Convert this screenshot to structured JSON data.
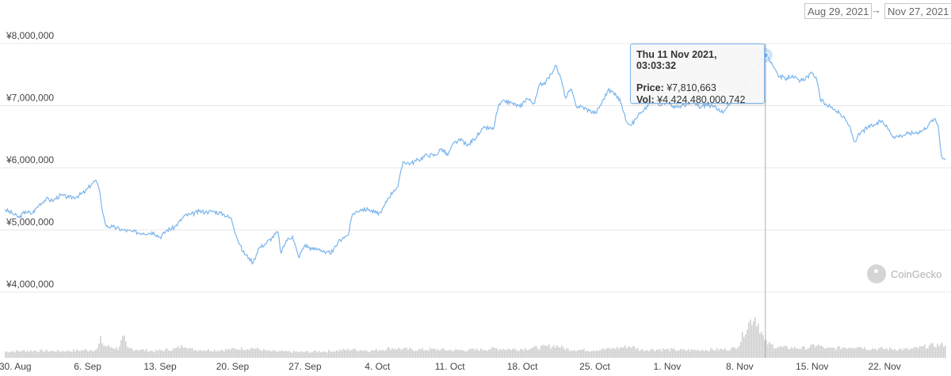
{
  "range": {
    "start": "Aug 29, 2021",
    "arrow": "→",
    "end": "Nov 27, 2021"
  },
  "tooltip": {
    "title": "Thu 11 Nov 2021, 03:03:32",
    "price_label": "Price:",
    "price_value": "¥7,810,663",
    "vol_label": "Vol:",
    "vol_value": "¥4,424,480,000,742",
    "date_day": 74.1,
    "price": 7810663
  },
  "watermark": {
    "text": "CoinGecko"
  },
  "colors": {
    "line": "#7cb5ec",
    "volume": "#d0d0d0",
    "grid": "#e8e8e8",
    "crosshair": "#b0b0b0"
  },
  "chart_data": {
    "type": "line",
    "title": "",
    "xlabel": "",
    "ylabel": "",
    "x_tick_labels": [
      "30. Aug",
      "6. Sep",
      "13. Sep",
      "20. Sep",
      "27. Sep",
      "4. Oct",
      "11. Oct",
      "18. Oct",
      "25. Oct",
      "1. Nov",
      "8. Nov",
      "15. Nov",
      "22. Nov"
    ],
    "x_tick_days": [
      1,
      8,
      15,
      22,
      29,
      36,
      43,
      50,
      57,
      64,
      71,
      78,
      85
    ],
    "y_ticks": [
      4000000,
      5000000,
      6000000,
      7000000,
      8000000
    ],
    "y_tick_labels": [
      "¥4,000,000",
      "¥5,000,000",
      "¥6,000,000",
      "¥7,000,000",
      "¥8,000,000"
    ],
    "ylim": [
      3900000,
      8150000
    ],
    "xlim": [
      0.6,
      91.5
    ],
    "grid": true,
    "series": [
      {
        "values": [
          [
            0.6,
            5330000
          ],
          [
            1.3,
            5270000
          ],
          [
            2.0,
            5200000
          ],
          [
            2.6,
            5300000
          ],
          [
            3.2,
            5260000
          ],
          [
            4.0,
            5420000
          ],
          [
            4.6,
            5500000
          ],
          [
            5.2,
            5470000
          ],
          [
            6.0,
            5560000
          ],
          [
            6.8,
            5520000
          ],
          [
            7.6,
            5540000
          ],
          [
            8.4,
            5620000
          ],
          [
            9.0,
            5740000
          ],
          [
            9.4,
            5800000
          ],
          [
            9.8,
            5600000
          ],
          [
            10.1,
            5250000
          ],
          [
            10.4,
            5060000
          ],
          [
            11.0,
            5050000
          ],
          [
            12.0,
            5000000
          ],
          [
            13.0,
            4970000
          ],
          [
            14.0,
            4950000
          ],
          [
            15.0,
            4960000
          ],
          [
            15.6,
            4880000
          ],
          [
            16.3,
            5000000
          ],
          [
            17.0,
            5040000
          ],
          [
            18.0,
            5230000
          ],
          [
            18.6,
            5250000
          ],
          [
            19.4,
            5300000
          ],
          [
            20.0,
            5290000
          ],
          [
            20.8,
            5300000
          ],
          [
            21.8,
            5250000
          ],
          [
            22.5,
            5180000
          ],
          [
            23.0,
            4900000
          ],
          [
            23.6,
            4650000
          ],
          [
            24.2,
            4550000
          ],
          [
            24.6,
            4470000
          ],
          [
            25.1,
            4700000
          ],
          [
            25.8,
            4780000
          ],
          [
            26.4,
            4870000
          ],
          [
            27.0,
            4970000
          ],
          [
            27.3,
            4620000
          ],
          [
            27.8,
            4830000
          ],
          [
            28.4,
            4900000
          ],
          [
            29.0,
            4560000
          ],
          [
            29.6,
            4760000
          ],
          [
            30.3,
            4690000
          ],
          [
            31.0,
            4700000
          ],
          [
            31.6,
            4620000
          ],
          [
            32.3,
            4650000
          ],
          [
            32.8,
            4800000
          ],
          [
            33.3,
            4880000
          ],
          [
            33.8,
            4920000
          ],
          [
            34.2,
            5260000
          ],
          [
            35.0,
            5330000
          ],
          [
            35.8,
            5330000
          ],
          [
            36.5,
            5270000
          ],
          [
            37.0,
            5280000
          ],
          [
            37.6,
            5500000
          ],
          [
            38.2,
            5640000
          ],
          [
            38.6,
            5700000
          ],
          [
            39.1,
            6100000
          ],
          [
            39.8,
            6070000
          ],
          [
            40.6,
            6130000
          ],
          [
            41.4,
            6210000
          ],
          [
            42.2,
            6200000
          ],
          [
            42.8,
            6310000
          ],
          [
            43.4,
            6200000
          ],
          [
            44.0,
            6400000
          ],
          [
            44.8,
            6450000
          ],
          [
            45.3,
            6350000
          ],
          [
            45.9,
            6460000
          ],
          [
            46.5,
            6560000
          ],
          [
            47.0,
            6650000
          ],
          [
            47.8,
            6620000
          ],
          [
            48.3,
            6990000
          ],
          [
            48.9,
            7080000
          ],
          [
            49.6,
            7040000
          ],
          [
            50.4,
            6980000
          ],
          [
            51.0,
            7120000
          ],
          [
            51.8,
            7040000
          ],
          [
            52.3,
            7350000
          ],
          [
            52.9,
            7380000
          ],
          [
            53.4,
            7510000
          ],
          [
            53.8,
            7650000
          ],
          [
            54.3,
            7460000
          ],
          [
            54.8,
            7120000
          ],
          [
            55.3,
            7270000
          ],
          [
            55.8,
            7000000
          ],
          [
            56.4,
            6980000
          ],
          [
            57.1,
            6920000
          ],
          [
            57.7,
            6880000
          ],
          [
            58.3,
            7050000
          ],
          [
            58.9,
            7250000
          ],
          [
            59.6,
            7200000
          ],
          [
            60.2,
            7030000
          ],
          [
            60.6,
            6770000
          ],
          [
            61.2,
            6690000
          ],
          [
            61.8,
            6850000
          ],
          [
            62.3,
            6900000
          ],
          [
            62.9,
            7050000
          ],
          [
            63.5,
            7060000
          ],
          [
            64.1,
            7020000
          ],
          [
            64.7,
            7100000
          ],
          [
            65.3,
            6960000
          ],
          [
            66.0,
            7000000
          ],
          [
            66.6,
            7030000
          ],
          [
            67.2,
            7050000
          ],
          [
            67.8,
            6970000
          ],
          [
            68.4,
            7020000
          ],
          [
            69.0,
            6980000
          ],
          [
            69.6,
            6950000
          ],
          [
            70.0,
            6880000
          ],
          [
            70.6,
            7010000
          ],
          [
            71.2,
            7160000
          ],
          [
            71.8,
            7260000
          ],
          [
            72.5,
            7480000
          ],
          [
            73.2,
            7640000
          ],
          [
            74.1,
            7810663
          ],
          [
            74.7,
            7700000
          ],
          [
            75.3,
            7500000
          ],
          [
            76.0,
            7430000
          ],
          [
            76.7,
            7490000
          ],
          [
            77.4,
            7380000
          ],
          [
            78.0,
            7450000
          ],
          [
            78.6,
            7520000
          ],
          [
            79.0,
            7460000
          ],
          [
            79.4,
            7100000
          ],
          [
            80.0,
            7020000
          ],
          [
            80.8,
            6940000
          ],
          [
            81.6,
            6820000
          ],
          [
            82.2,
            6680000
          ],
          [
            82.7,
            6420000
          ],
          [
            83.3,
            6560000
          ],
          [
            84.0,
            6650000
          ],
          [
            84.8,
            6700000
          ],
          [
            85.4,
            6760000
          ],
          [
            85.9,
            6640000
          ],
          [
            86.5,
            6500000
          ],
          [
            87.2,
            6520000
          ],
          [
            87.9,
            6550000
          ],
          [
            88.6,
            6570000
          ],
          [
            89.3,
            6600000
          ],
          [
            89.9,
            6700000
          ],
          [
            90.4,
            6790000
          ],
          [
            90.8,
            6680000
          ],
          [
            91.1,
            6200000
          ],
          [
            91.5,
            6130000
          ]
        ]
      }
    ],
    "volume": {
      "values": [
        [
          0.6,
          0.28
        ],
        [
          3,
          0.32
        ],
        [
          6,
          0.3
        ],
        [
          9,
          0.36
        ],
        [
          9.5,
          0.4
        ],
        [
          9.8,
          0.85
        ],
        [
          10.1,
          0.55
        ],
        [
          11.5,
          0.42
        ],
        [
          12,
          0.95
        ],
        [
          12.4,
          0.42
        ],
        [
          15,
          0.3
        ],
        [
          17,
          0.4
        ],
        [
          18,
          0.58
        ],
        [
          18.5,
          0.38
        ],
        [
          21,
          0.34
        ],
        [
          23,
          0.4
        ],
        [
          24.5,
          0.44
        ],
        [
          26,
          0.3
        ],
        [
          29,
          0.26
        ],
        [
          32,
          0.3
        ],
        [
          34,
          0.38
        ],
        [
          36,
          0.32
        ],
        [
          38,
          0.44
        ],
        [
          40,
          0.36
        ],
        [
          42,
          0.38
        ],
        [
          44,
          0.34
        ],
        [
          46,
          0.36
        ],
        [
          48,
          0.42
        ],
        [
          50,
          0.38
        ],
        [
          52,
          0.46
        ],
        [
          53.8,
          0.55
        ],
        [
          55,
          0.38
        ],
        [
          57,
          0.34
        ],
        [
          59,
          0.4
        ],
        [
          61,
          0.52
        ],
        [
          62,
          0.36
        ],
        [
          64,
          0.38
        ],
        [
          66,
          0.34
        ],
        [
          68,
          0.36
        ],
        [
          70,
          0.38
        ],
        [
          71,
          0.42
        ],
        [
          71.5,
          0.6
        ],
        [
          72,
          1.2
        ],
        [
          72.5,
          1.6
        ],
        [
          73,
          1.9
        ],
        [
          73.4,
          1.5
        ],
        [
          74,
          0.7
        ],
        [
          75,
          0.5
        ],
        [
          76,
          0.46
        ],
        [
          78,
          0.44
        ],
        [
          79,
          0.58
        ],
        [
          80,
          0.4
        ],
        [
          82,
          0.48
        ],
        [
          83,
          0.52
        ],
        [
          84,
          0.42
        ],
        [
          86,
          0.4
        ],
        [
          88,
          0.38
        ],
        [
          90,
          0.55
        ],
        [
          91.5,
          0.6
        ]
      ],
      "note": ""
    }
  }
}
